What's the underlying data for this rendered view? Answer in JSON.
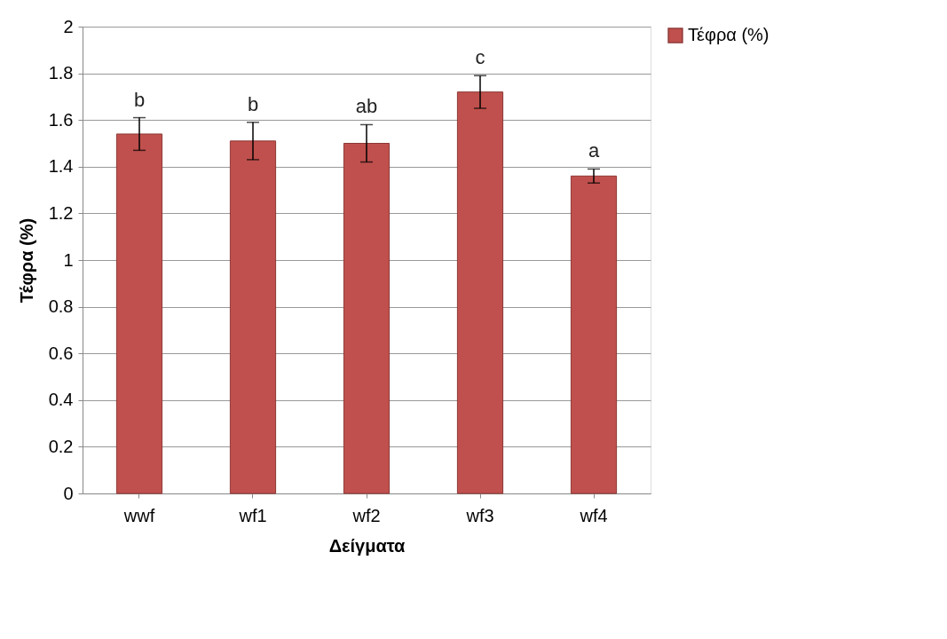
{
  "chart_data": {
    "type": "bar",
    "xlabel": "Δείγματα",
    "ylabel": "Τέφρα (%)",
    "categories": [
      "wwf",
      "wf1",
      "wf2",
      "wf3",
      "wf4"
    ],
    "series": [
      {
        "name": "Τέφρα (%)",
        "color": "#c0504d",
        "values": [
          1.54,
          1.51,
          1.5,
          1.72,
          1.36
        ],
        "errors": [
          0.07,
          0.08,
          0.08,
          0.07,
          0.03
        ]
      }
    ],
    "ylim": [
      0,
      2
    ],
    "yticks": [
      0,
      0.2,
      0.4,
      0.6,
      0.8,
      1,
      1.2,
      1.4,
      1.6,
      1.8,
      2
    ],
    "grid": "y",
    "legend": "right",
    "annotations": [
      {
        "text": "b",
        "x": "wwf",
        "y": 1.61
      },
      {
        "text": "b",
        "x": "wf1",
        "y": 1.59
      },
      {
        "text": "ab",
        "x": "wf2",
        "y": 1.58
      },
      {
        "text": "c",
        "x": "wf3",
        "y": 1.79
      },
      {
        "text": "a",
        "x": "wf4",
        "y": 1.39
      }
    ]
  }
}
